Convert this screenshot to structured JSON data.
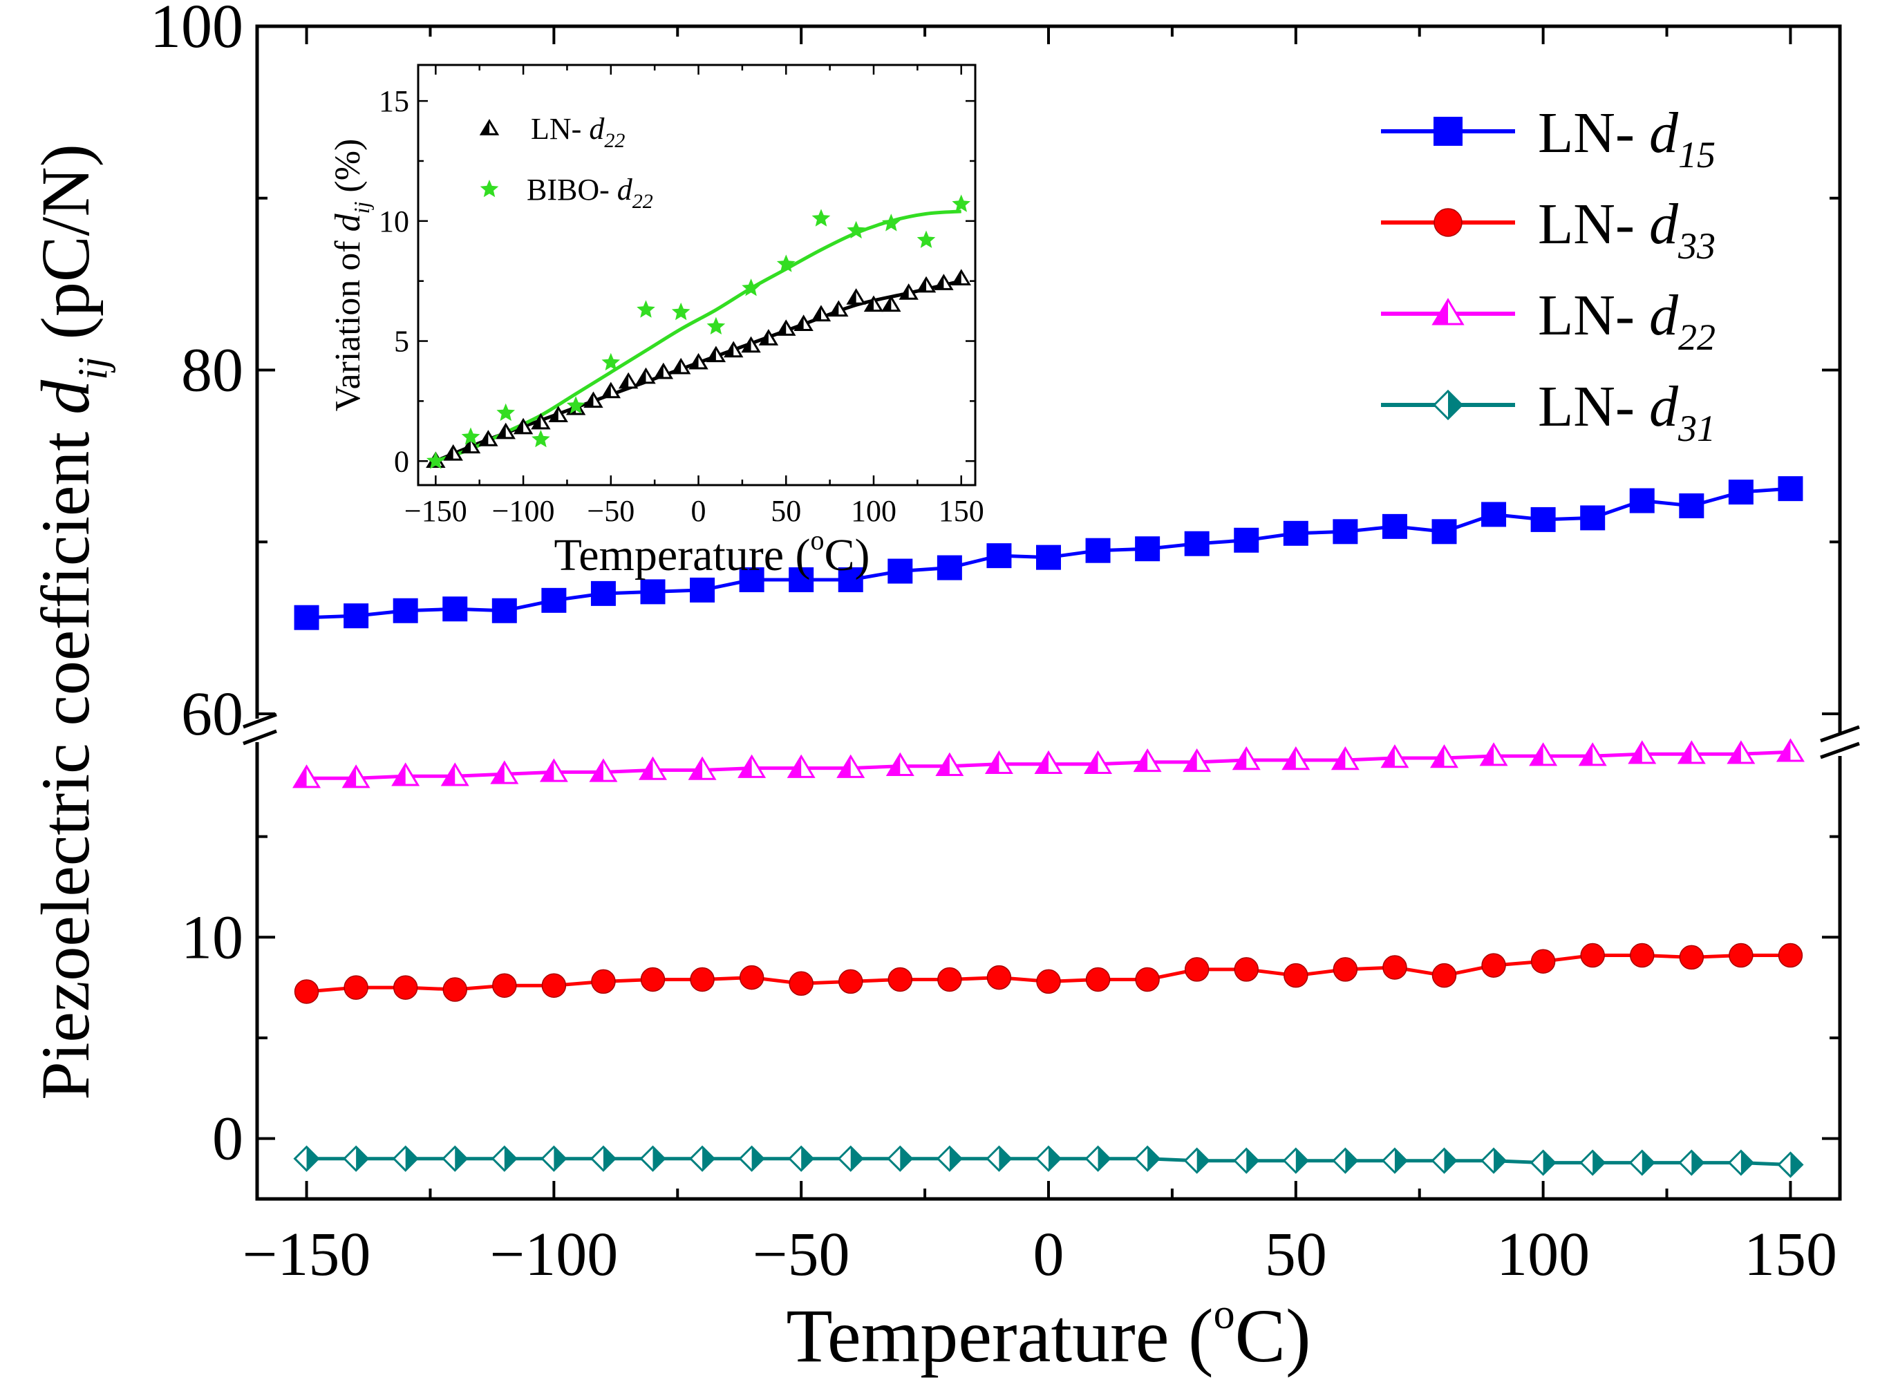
{
  "chart_data": {
    "main": {
      "type": "line",
      "xlabel": "Temperature (",
      "xlabel_sup": "o",
      "xlabel_end": "C)",
      "ylabel_main": "Piezoelectric coefficient ",
      "ylabel_sym": "d",
      "ylabel_sub": "ij",
      "ylabel_unit": " (pC/N)",
      "xlim": [
        -160,
        160
      ],
      "x_ticks": [
        -150,
        -100,
        -50,
        0,
        50,
        100,
        150
      ],
      "x_tick_labels": [
        "−150",
        "−100",
        "−50",
        "0",
        "50",
        "100",
        "150"
      ],
      "y_segments": [
        {
          "name": "lower",
          "ylim": [
            -3,
            20
          ],
          "ticks": [
            0,
            10
          ],
          "tick_labels": [
            "0",
            "10"
          ]
        },
        {
          "name": "upper",
          "ylim": [
            60,
            100
          ],
          "ticks": [
            60,
            80,
            100
          ],
          "tick_labels": [
            "60",
            "80",
            "100"
          ]
        }
      ],
      "x": [
        -150,
        -140,
        -130,
        -120,
        -110,
        -100,
        -90,
        -80,
        -70,
        -60,
        -50,
        -40,
        -30,
        -20,
        -10,
        0,
        10,
        20,
        30,
        40,
        50,
        60,
        70,
        80,
        90,
        100,
        110,
        120,
        130,
        140,
        150
      ],
      "series": [
        {
          "name": "LN-",
          "sub": "15",
          "color": "#0000ff",
          "marker": "square",
          "segment": "upper",
          "values": [
            65.6,
            65.7,
            66.0,
            66.1,
            66.0,
            66.6,
            67.0,
            67.1,
            67.2,
            67.8,
            67.8,
            67.8,
            68.3,
            68.5,
            69.2,
            69.1,
            69.5,
            69.6,
            69.9,
            70.1,
            70.5,
            70.6,
            70.9,
            70.6,
            71.6,
            71.3,
            71.4,
            72.4,
            72.1,
            72.9,
            73.1
          ]
        },
        {
          "name": "LN-",
          "sub": "33",
          "color": "#ff0000",
          "marker": "circle",
          "segment": "lower",
          "values": [
            7.3,
            7.5,
            7.5,
            7.4,
            7.6,
            7.6,
            7.8,
            7.9,
            7.9,
            8.0,
            7.7,
            7.8,
            7.9,
            7.9,
            8.0,
            7.8,
            7.9,
            7.9,
            8.4,
            8.4,
            8.1,
            8.4,
            8.5,
            8.1,
            8.6,
            8.8,
            9.1,
            9.1,
            9.0,
            9.1,
            9.1
          ]
        },
        {
          "name": "LN-",
          "sub": "22",
          "color": "#ff00ff",
          "marker": "triangle",
          "segment": "lower",
          "values": [
            17.9,
            17.9,
            18.0,
            18.0,
            18.1,
            18.2,
            18.2,
            18.3,
            18.3,
            18.4,
            18.4,
            18.4,
            18.5,
            18.5,
            18.6,
            18.6,
            18.6,
            18.7,
            18.7,
            18.8,
            18.8,
            18.8,
            18.9,
            18.9,
            19.0,
            19.0,
            19.0,
            19.1,
            19.1,
            19.1,
            19.2
          ]
        },
        {
          "name": "LN-",
          "sub": "31",
          "color": "#00807f",
          "marker": "diamond",
          "segment": "lower",
          "values": [
            -1.0,
            -1.0,
            -1.0,
            -1.0,
            -1.0,
            -1.0,
            -1.0,
            -1.0,
            -1.0,
            -1.0,
            -1.0,
            -1.0,
            -1.0,
            -1.0,
            -1.0,
            -1.0,
            -1.0,
            -1.0,
            -1.1,
            -1.1,
            -1.1,
            -1.1,
            -1.1,
            -1.1,
            -1.1,
            -1.2,
            -1.2,
            -1.2,
            -1.2,
            -1.2,
            -1.3
          ]
        }
      ],
      "legend_position": "top-right"
    },
    "inset": {
      "type": "scatter",
      "xlabel": "Temperature (",
      "xlabel_sup": "o",
      "xlabel_end": "C)",
      "ylabel_main": "Variation of ",
      "ylabel_sym": "d",
      "ylabel_sub": "ij",
      "ylabel_unit": " (%)",
      "xlim": [
        -160,
        158
      ],
      "ylim": [
        -1,
        16.5
      ],
      "x_ticks": [
        -150,
        -100,
        -50,
        0,
        50,
        100,
        150
      ],
      "x_tick_labels": [
        "−150",
        "−100",
        "−50",
        "0",
        "50",
        "100",
        "150"
      ],
      "y_ticks": [
        0,
        5,
        10,
        15
      ],
      "y_tick_labels": [
        "0",
        "5",
        "10",
        "15"
      ],
      "series": [
        {
          "name": "LN-",
          "sub": "22",
          "color": "#000000",
          "marker": "triangle",
          "x": [
            -150,
            -140,
            -130,
            -120,
            -110,
            -100,
            -90,
            -80,
            -70,
            -60,
            -50,
            -40,
            -30,
            -20,
            -10,
            0,
            10,
            20,
            30,
            40,
            50,
            60,
            70,
            80,
            90,
            100,
            110,
            120,
            130,
            140,
            150
          ],
          "values": [
            0.0,
            0.3,
            0.6,
            0.9,
            1.2,
            1.4,
            1.6,
            1.9,
            2.2,
            2.5,
            2.9,
            3.3,
            3.5,
            3.7,
            3.9,
            4.1,
            4.4,
            4.6,
            4.8,
            5.1,
            5.5,
            5.7,
            6.1,
            6.3,
            6.8,
            6.5,
            6.5,
            7.0,
            7.3,
            7.4,
            7.6
          ]
        },
        {
          "name": "BIBO-",
          "sub": "22",
          "color": "#33dd22",
          "marker": "star",
          "x": [
            -150,
            -130,
            -110,
            -90,
            -70,
            -50,
            -30,
            -10,
            10,
            30,
            50,
            70,
            90,
            110,
            130,
            150
          ],
          "values": [
            0.0,
            1.0,
            2.0,
            0.9,
            2.3,
            4.1,
            6.3,
            6.2,
            5.6,
            7.2,
            8.2,
            10.1,
            9.6,
            9.9,
            9.2,
            10.7
          ]
        }
      ],
      "fit_lines": [
        {
          "series": "LN-d22",
          "color": "#000000",
          "x": [
            -150,
            -120,
            -90,
            -60,
            -30,
            0,
            30,
            60,
            90,
            120,
            150
          ],
          "values": [
            0.0,
            0.9,
            1.7,
            2.5,
            3.3,
            4.1,
            4.9,
            5.7,
            6.5,
            7.0,
            7.5
          ]
        },
        {
          "series": "BIBO-d22",
          "color": "#33dd22",
          "x": [
            -150,
            -130,
            -110,
            -90,
            -70,
            -50,
            -30,
            -10,
            10,
            30,
            50,
            70,
            90,
            110,
            130,
            150
          ],
          "values": [
            0.0,
            0.5,
            1.2,
            1.9,
            2.8,
            3.7,
            4.6,
            5.5,
            6.3,
            7.2,
            8.0,
            8.8,
            9.5,
            10.0,
            10.3,
            10.4
          ]
        }
      ],
      "legend_position": "top-left"
    }
  }
}
